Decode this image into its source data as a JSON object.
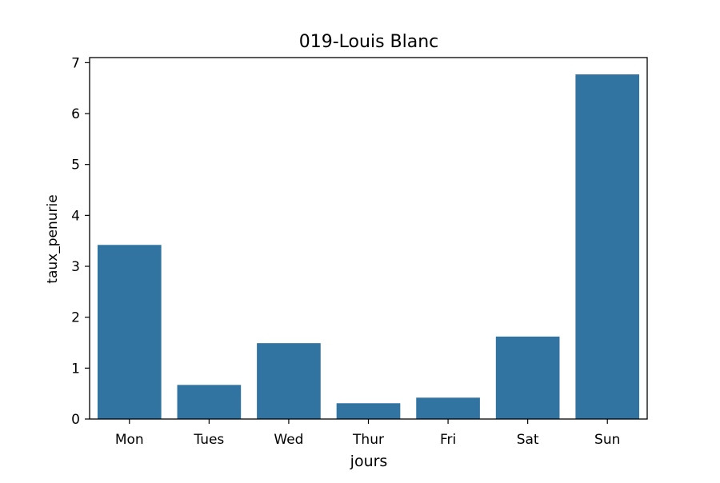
{
  "chart_data": {
    "type": "bar",
    "title": "019-Louis Blanc",
    "xlabel": "jours",
    "ylabel": "taux_penurie",
    "categories": [
      "Mon",
      "Tues",
      "Wed",
      "Thur",
      "Fri",
      "Sat",
      "Sun"
    ],
    "values": [
      3.42,
      0.67,
      1.49,
      0.31,
      0.42,
      1.62,
      6.77
    ],
    "ylim": [
      0,
      7.1
    ],
    "yticks": [
      0,
      1,
      2,
      3,
      4,
      5,
      6,
      7
    ],
    "grid": false,
    "legend": "none",
    "bar_color": "#3274a1"
  }
}
